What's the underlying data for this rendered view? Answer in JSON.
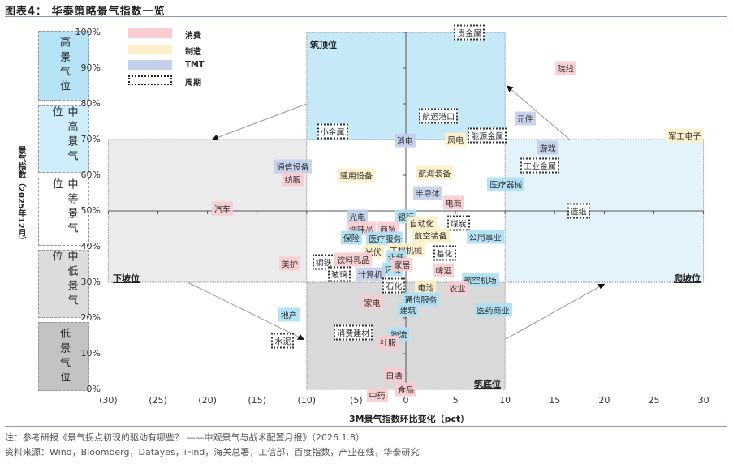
{
  "title": "图表4： 华泰策略景气指数一览",
  "side_levels": [
    "高景气位",
    "中高景气位",
    "中等景气位",
    "中低景气位",
    "低景气位"
  ],
  "legend": [
    "消费",
    "制造",
    "TMT",
    "周期"
  ],
  "quadrants": {
    "top": "筑顶位",
    "left": "下坡位",
    "bottom": "筑底位",
    "right": "爬坡位"
  },
  "footer": {
    "note": "注：参考研报《景气拐点初现的驱动有哪些？ ——中观景气与战术配置月报》（2026.1.8）",
    "source": "资料来源：Wind，Bloomberg，Datayes，iFind，海关总署，工信部，百度指数，产业在线，华泰研究"
  },
  "colors": {
    "消费": "#f9cdd1",
    "制造": "#fdefc8",
    "TMT": "#c5d0ec",
    "other": "#aee1f5",
    "周期": "#ffffff"
  },
  "chart_data": {
    "type": "scatter",
    "xlabel": "3M景气指数环比变化（pct）",
    "ylabel": "景气指数（2025年12月）",
    "xlim": [
      -30,
      30
    ],
    "ylim": [
      0,
      100
    ],
    "x_ticks": [
      "(30)",
      "(25)",
      "(20)",
      "(15)",
      "(10)",
      "(5)",
      "0",
      "5",
      "10",
      "15",
      "20",
      "25",
      "30"
    ],
    "y_ticks": [
      "100%",
      "90%",
      "80%",
      "70%",
      "60%",
      "50%",
      "40%",
      "30%",
      "20%",
      "10%",
      "0%"
    ],
    "points": [
      {
        "name": "贵金属",
        "x": 6.4,
        "y": 100,
        "cat": "周期"
      },
      {
        "name": "院线",
        "x": 16.1,
        "y": 90,
        "cat": "消费"
      },
      {
        "name": "航运港口",
        "x": 3.3,
        "y": 76.6,
        "cat": "周期"
      },
      {
        "name": "元件",
        "x": 12.0,
        "y": 75.9,
        "cat": "TMT"
      },
      {
        "name": "小金属",
        "x": -7.4,
        "y": 72.3,
        "cat": "周期"
      },
      {
        "name": "消电",
        "x": -0.1,
        "y": 69.8,
        "cat": "TMT"
      },
      {
        "name": "风电",
        "x": 5.0,
        "y": 70,
        "cat": "制造"
      },
      {
        "name": "能源金属",
        "x": 8.2,
        "y": 71.1,
        "cat": "周期"
      },
      {
        "name": "军工电子",
        "x": 28.1,
        "y": 71.1,
        "cat": "制造"
      },
      {
        "name": "游戏",
        "x": 14.3,
        "y": 67.7,
        "cat": "TMT"
      },
      {
        "name": "工业金属",
        "x": 13.5,
        "y": 62.7,
        "cat": "周期"
      },
      {
        "name": "通信设备",
        "x": -11.4,
        "y": 62.5,
        "cat": "TMT"
      },
      {
        "name": "纺服",
        "x": -11.4,
        "y": 58.9,
        "cat": "消费"
      },
      {
        "name": "通用设备",
        "x": -5.0,
        "y": 60,
        "cat": "制造"
      },
      {
        "name": "航海装备",
        "x": 2.9,
        "y": 60.7,
        "cat": "制造"
      },
      {
        "name": "医疗器械",
        "x": 10.1,
        "y": 57.5,
        "cat": "other"
      },
      {
        "name": "半导体",
        "x": 2.2,
        "y": 55,
        "cat": "TMT"
      },
      {
        "name": "电商",
        "x": 4.8,
        "y": 52.3,
        "cat": "消费"
      },
      {
        "name": "汽车",
        "x": -18.5,
        "y": 50.7,
        "cat": "消费"
      },
      {
        "name": "造纸",
        "x": 17.4,
        "y": 50,
        "cat": "周期"
      },
      {
        "name": "光电",
        "x": -4.9,
        "y": 48.4,
        "cat": "TMT"
      },
      {
        "name": "银行",
        "x": 0,
        "y": 48.4,
        "cat": "other"
      },
      {
        "name": "自动化",
        "x": 1.6,
        "y": 46.6,
        "cat": "制造"
      },
      {
        "name": "煤炭",
        "x": 5.3,
        "y": 46.6,
        "cat": "周期"
      },
      {
        "name": "调味品",
        "x": -4.5,
        "y": 45,
        "cat": "消费"
      },
      {
        "name": "商贸",
        "x": -1.8,
        "y": 45,
        "cat": "消费"
      },
      {
        "name": "保险",
        "x": -5.5,
        "y": 42.5,
        "cat": "other"
      },
      {
        "name": "医疗服务",
        "x": -2.1,
        "y": 42.3,
        "cat": "other"
      },
      {
        "name": "航空装备",
        "x": 2.5,
        "y": 43.2,
        "cat": "制造"
      },
      {
        "name": "公用事业",
        "x": 8.0,
        "y": 42.7,
        "cat": "other"
      },
      {
        "name": "光伏",
        "x": -3.3,
        "y": 38.6,
        "cat": "制造"
      },
      {
        "name": "工程机械",
        "x": 0,
        "y": 39.1,
        "cat": "制造"
      },
      {
        "name": "化纤",
        "x": -1,
        "y": 37,
        "cat": "other"
      },
      {
        "name": "基化",
        "x": 3.9,
        "y": 38.2,
        "cat": "周期"
      },
      {
        "name": "钢铁",
        "x": -8.3,
        "y": 35.7,
        "cat": "周期"
      },
      {
        "name": "饮料乳品",
        "x": -5.3,
        "y": 36.4,
        "cat": "消费"
      },
      {
        "name": "美护",
        "x": -11.7,
        "y": 35.2,
        "cat": "消费"
      },
      {
        "name": "环保",
        "x": -1.3,
        "y": 33.6,
        "cat": "other"
      },
      {
        "name": "家居",
        "x": -0.4,
        "y": 35,
        "cat": "消费"
      },
      {
        "name": "啤酒",
        "x": 3.8,
        "y": 33.4,
        "cat": "消费"
      },
      {
        "name": "玻璃",
        "x": -6.7,
        "y": 32.3,
        "cat": "周期"
      },
      {
        "name": "计算机",
        "x": -3.6,
        "y": 32.3,
        "cat": "TMT"
      },
      {
        "name": "航空机场",
        "x": 7.5,
        "y": 30.7,
        "cat": "other"
      },
      {
        "name": "石化",
        "x": -1.2,
        "y": 29.1,
        "cat": "周期"
      },
      {
        "name": "电池",
        "x": 2.0,
        "y": 28.6,
        "cat": "制造"
      },
      {
        "name": "农业",
        "x": 5.2,
        "y": 28.4,
        "cat": "消费"
      },
      {
        "name": "家电",
        "x": -3.4,
        "y": 24.3,
        "cat": "消费"
      },
      {
        "name": "通信服务",
        "x": 1.5,
        "y": 25.2,
        "cat": "other"
      },
      {
        "name": "建筑",
        "x": 0.2,
        "y": 22.3,
        "cat": "other"
      },
      {
        "name": "医药商业",
        "x": 8.8,
        "y": 22.3,
        "cat": "other"
      },
      {
        "name": "地产",
        "x": -11.8,
        "y": 20.9,
        "cat": "other"
      },
      {
        "name": "消费建材",
        "x": -5.3,
        "y": 15.9,
        "cat": "周期"
      },
      {
        "name": "水泥",
        "x": -12.4,
        "y": 13.6,
        "cat": "周期"
      },
      {
        "name": "物流",
        "x": -0.7,
        "y": 15.5,
        "cat": "other"
      },
      {
        "name": "社服",
        "x": -1.8,
        "y": 13.2,
        "cat": "消费"
      },
      {
        "name": "白酒",
        "x": -1.2,
        "y": 4.1,
        "cat": "消费"
      },
      {
        "name": "食品",
        "x": 0,
        "y": 0,
        "cat": "消费"
      },
      {
        "name": "中药",
        "x": -2.9,
        "y": -1.6,
        "cat": "消费"
      }
    ]
  }
}
